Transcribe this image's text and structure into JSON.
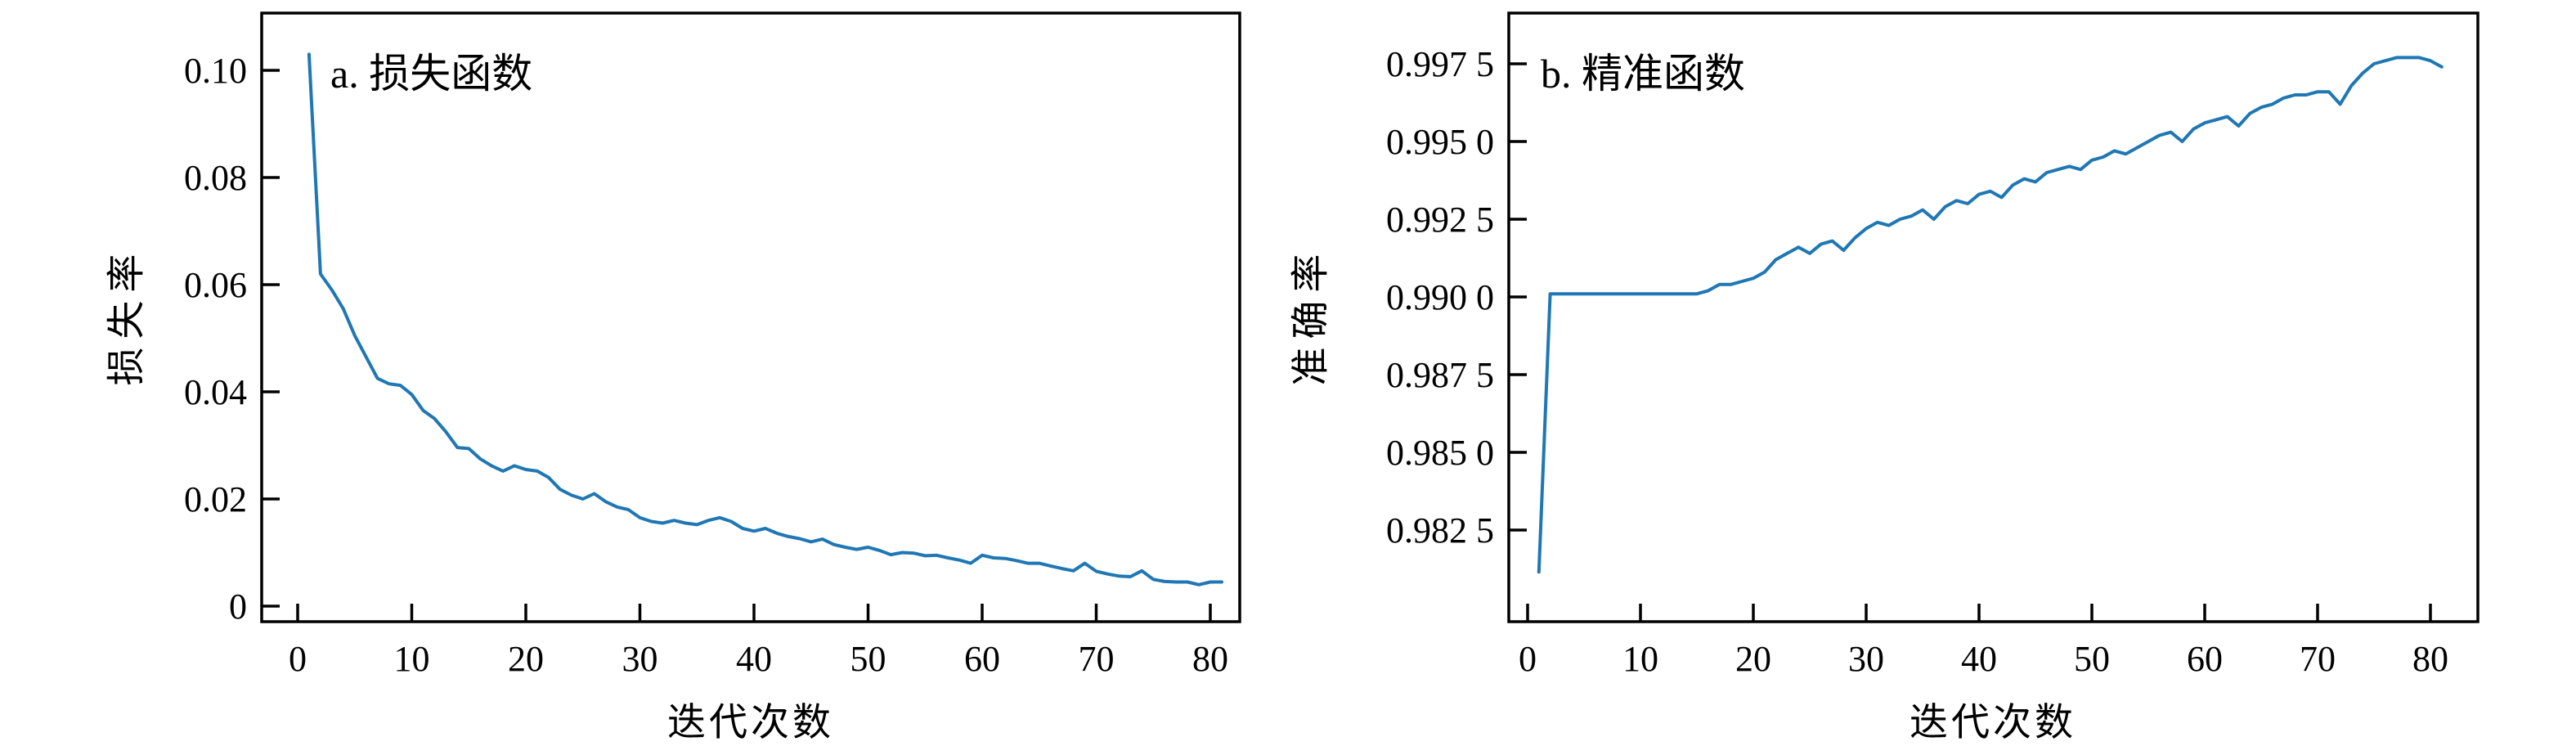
{
  "page": {
    "background": "#ffffff"
  },
  "chart_data": [
    {
      "type": "line",
      "panel": "a",
      "title": "a. 损失函数",
      "xlabel": "迭代次数",
      "ylabel": "损失率",
      "line_color": "#1f77b4",
      "grid": false,
      "legend": null,
      "xlim": [
        -3.2,
        82.6
      ],
      "ylim": [
        -0.003,
        0.1135
      ],
      "x_ticks": [
        0,
        10,
        20,
        30,
        40,
        50,
        60,
        70,
        80
      ],
      "y_ticks": [
        {
          "value": 0.1,
          "label": "0.10"
        },
        {
          "value": 0.08,
          "label": "0.08"
        },
        {
          "value": 0.06,
          "label": "0.06"
        },
        {
          "value": 0.04,
          "label": "0.04"
        },
        {
          "value": 0.02,
          "label": "0.02"
        },
        {
          "value": 0.0,
          "label": "0"
        }
      ],
      "x": [
        1,
        2,
        3,
        4,
        5,
        6,
        7,
        8,
        9,
        10,
        11,
        12,
        13,
        14,
        15,
        16,
        17,
        18,
        19,
        20,
        21,
        22,
        23,
        24,
        25,
        26,
        27,
        28,
        29,
        30,
        31,
        32,
        33,
        34,
        35,
        36,
        37,
        38,
        39,
        40,
        41,
        42,
        43,
        44,
        45,
        46,
        47,
        48,
        49,
        50,
        51,
        52,
        53,
        54,
        55,
        56,
        57,
        58,
        59,
        60,
        61,
        62,
        63,
        64,
        65,
        66,
        67,
        68,
        69,
        70,
        71,
        72,
        73,
        74,
        75,
        76,
        77,
        78,
        79,
        80,
        81
      ],
      "y": [
        0.103,
        0.062,
        0.059,
        0.0555,
        0.0505,
        0.0465,
        0.0425,
        0.0415,
        0.0412,
        0.0395,
        0.0365,
        0.035,
        0.0325,
        0.0296,
        0.0294,
        0.0275,
        0.0262,
        0.0252,
        0.0262,
        0.0255,
        0.0252,
        0.024,
        0.0218,
        0.0207,
        0.02,
        0.021,
        0.0195,
        0.0185,
        0.018,
        0.0165,
        0.0158,
        0.0155,
        0.016,
        0.0155,
        0.0152,
        0.016,
        0.0165,
        0.0158,
        0.0145,
        0.014,
        0.0145,
        0.0136,
        0.013,
        0.0126,
        0.012,
        0.0125,
        0.0115,
        0.011,
        0.0106,
        0.011,
        0.0104,
        0.0096,
        0.01,
        0.0099,
        0.0094,
        0.0095,
        0.009,
        0.0086,
        0.008,
        0.0095,
        0.009,
        0.0089,
        0.0085,
        0.008,
        0.008,
        0.0075,
        0.007,
        0.0066,
        0.008,
        0.0065,
        0.006,
        0.0056,
        0.0055,
        0.0066,
        0.005,
        0.0046,
        0.0045,
        0.0045,
        0.004,
        0.0045,
        0.0045
      ]
    },
    {
      "type": "line",
      "panel": "b",
      "title": "b. 精准函数",
      "xlabel": "迭代次数",
      "ylabel": "准确率",
      "line_color": "#1f77b4",
      "grid": false,
      "legend": null,
      "xlim": [
        -1.7,
        84.2
      ],
      "ylim": [
        0.9796,
        0.9993
      ],
      "x_ticks": [
        0,
        10,
        20,
        30,
        40,
        50,
        60,
        70,
        80
      ],
      "y_ticks": [
        {
          "value": 0.9975,
          "label": "0.997 5"
        },
        {
          "value": 0.995,
          "label": "0.995 0"
        },
        {
          "value": 0.9925,
          "label": "0.992 5"
        },
        {
          "value": 0.99,
          "label": "0.990 0"
        },
        {
          "value": 0.9875,
          "label": "0.987 5"
        },
        {
          "value": 0.985,
          "label": "0.985 0"
        },
        {
          "value": 0.9825,
          "label": "0.982 5"
        }
      ],
      "x": [
        1,
        2,
        3,
        4,
        5,
        6,
        7,
        8,
        9,
        10,
        11,
        12,
        13,
        14,
        15,
        16,
        17,
        18,
        19,
        20,
        21,
        22,
        23,
        24,
        25,
        26,
        27,
        28,
        29,
        30,
        31,
        32,
        33,
        34,
        35,
        36,
        37,
        38,
        39,
        40,
        41,
        42,
        43,
        44,
        45,
        46,
        47,
        48,
        49,
        50,
        51,
        52,
        53,
        54,
        55,
        56,
        57,
        58,
        59,
        60,
        61,
        62,
        63,
        64,
        65,
        66,
        67,
        68,
        69,
        70,
        71,
        72,
        73,
        74,
        75,
        76,
        77,
        78,
        79,
        80,
        81
      ],
      "y": [
        0.98115,
        0.9901,
        0.9901,
        0.9901,
        0.9901,
        0.9901,
        0.9901,
        0.9901,
        0.9901,
        0.9901,
        0.9901,
        0.9901,
        0.9901,
        0.9901,
        0.9901,
        0.9902,
        0.9904,
        0.9904,
        0.9905,
        0.9906,
        0.9908,
        0.9912,
        0.9914,
        0.9916,
        0.9914,
        0.9917,
        0.9918,
        0.9915,
        0.9919,
        0.9922,
        0.9924,
        0.9923,
        0.9925,
        0.9926,
        0.9928,
        0.9925,
        0.9929,
        0.9931,
        0.993,
        0.9933,
        0.9934,
        0.9932,
        0.9936,
        0.9938,
        0.9937,
        0.994,
        0.9941,
        0.9942,
        0.9941,
        0.9944,
        0.9945,
        0.9947,
        0.9946,
        0.9948,
        0.995,
        0.9952,
        0.9953,
        0.995,
        0.9954,
        0.9956,
        0.9957,
        0.9958,
        0.9955,
        0.9959,
        0.9961,
        0.9962,
        0.9964,
        0.9965,
        0.9965,
        0.9966,
        0.9966,
        0.9962,
        0.9968,
        0.9972,
        0.9975,
        0.9976,
        0.9977,
        0.9977,
        0.9977,
        0.9976,
        0.9974
      ]
    }
  ]
}
